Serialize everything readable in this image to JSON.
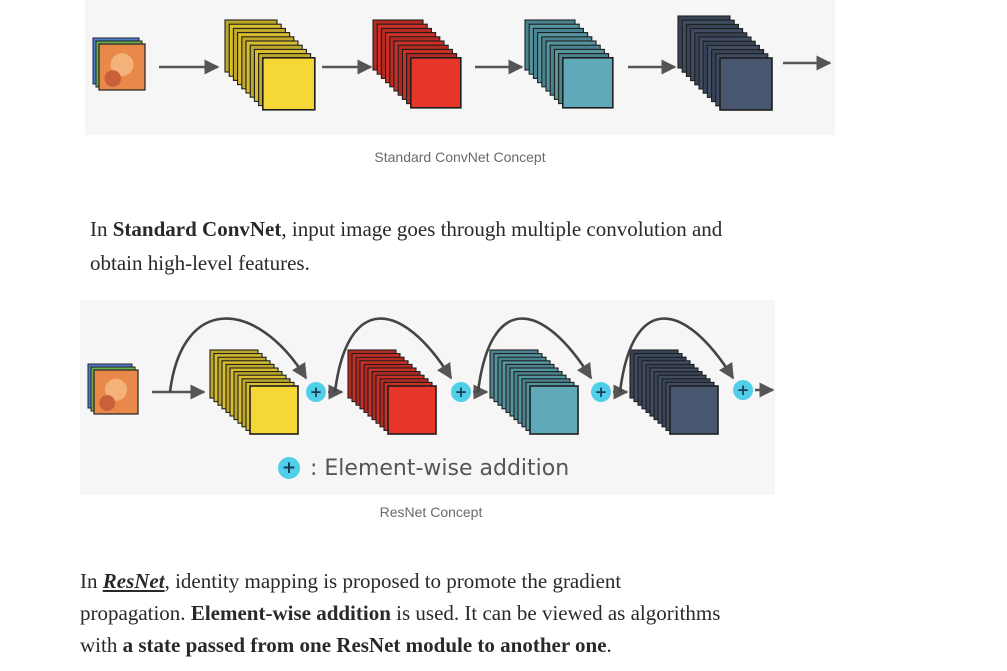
{
  "figure1": {
    "caption": "Standard ConvNet Concept",
    "colors": {
      "yellow": "#f5d835",
      "red": "#e8352a",
      "teal": "#5fa9b8",
      "navy": "#48566f",
      "arrow": "#555555"
    }
  },
  "paragraph1": {
    "prefix": "In ",
    "bold": "Standard ConvNet",
    "suffix_line1": ", input image goes through multiple convolution and",
    "line2": "obtain high-level features."
  },
  "figure2": {
    "caption": "ResNet Concept",
    "legend_text": ": Element-wise addition",
    "plus_symbol": "+",
    "colors": {
      "plus": "#4fd0e8",
      "arc": "#444444"
    }
  },
  "paragraph2": {
    "prefix": "In ",
    "link": "ResNet",
    "line1_rest": ", identity mapping is proposed to promote the gradient",
    "line2_start": "propagation. ",
    "line2_bold": "Element-wise addition",
    "line2_rest": " is used. It can be viewed as algorithms",
    "line3_start": "with ",
    "line3_bold": "a state passed from one ResNet module to another one",
    "line3_end": "."
  }
}
